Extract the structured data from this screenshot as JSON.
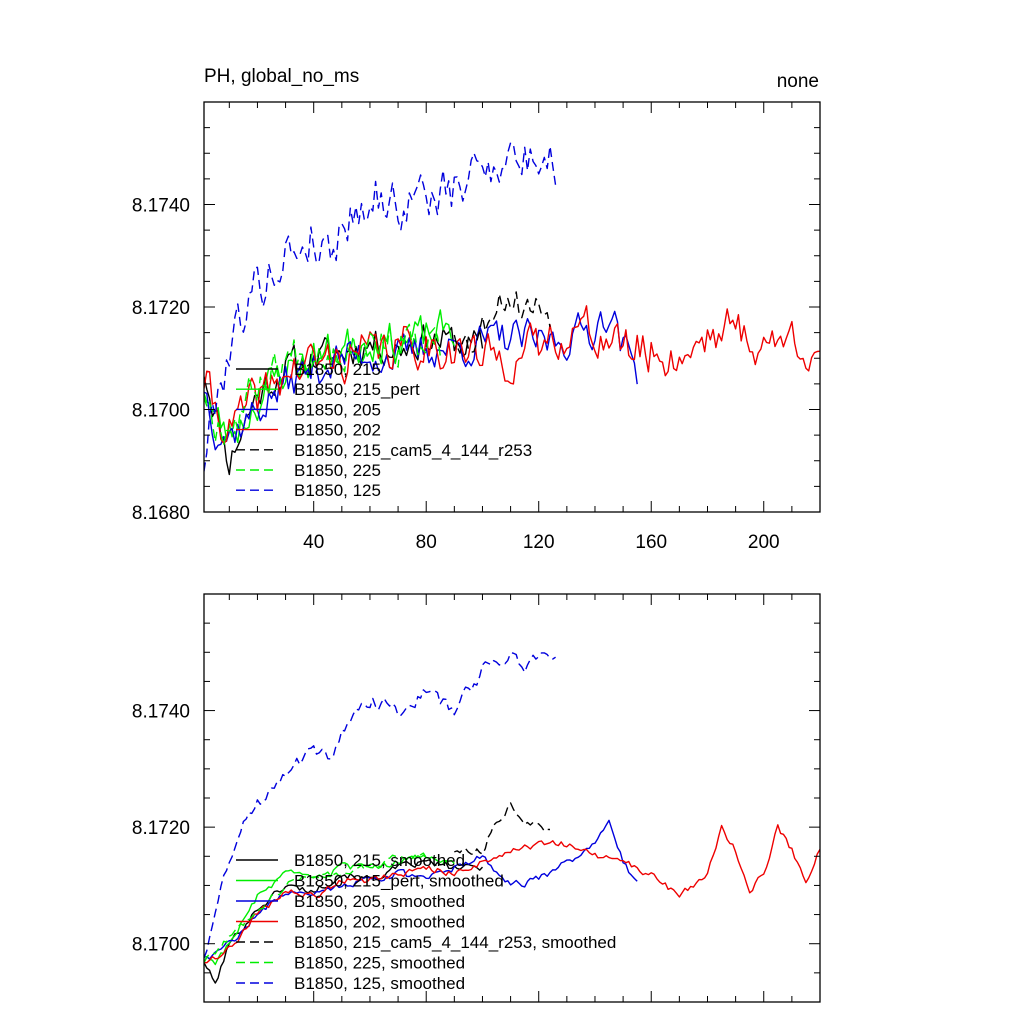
{
  "colors": {
    "black": "#000000",
    "green": "#00ee00",
    "blue": "#0000dd",
    "red": "#ee0000"
  },
  "chart_data": [
    {
      "type": "line",
      "title_left": "PH, global_no_ms",
      "title_right": "none",
      "xlim": [
        1,
        220
      ],
      "ylim": [
        8.168,
        8.176
      ],
      "x_ticks": [
        40,
        80,
        120,
        160,
        200
      ],
      "x_tick_labels": [
        "40",
        "80",
        "120",
        "160",
        "200"
      ],
      "y_ticks": [
        8.168,
        8.17,
        8.172,
        8.174
      ],
      "y_tick_labels": [
        "8.1680",
        "8.1700",
        "8.1720",
        "8.1740"
      ],
      "series": [
        {
          "name": "B1850, 215",
          "color": "black",
          "dash": "solid",
          "noise": 0.00055,
          "seed": 11,
          "anchors": [
            [
              1,
              8.1708
            ],
            [
              5,
              8.17
            ],
            [
              10,
              8.169
            ],
            [
              15,
              8.1697
            ],
            [
              20,
              8.1703
            ],
            [
              30,
              8.1708
            ],
            [
              40,
              8.171
            ],
            [
              50,
              8.1711
            ],
            [
              60,
              8.1713
            ],
            [
              70,
              8.1712
            ],
            [
              80,
              8.1714
            ],
            [
              90,
              8.1713
            ],
            [
              100,
              8.1712
            ]
          ]
        },
        {
          "name": "B1850, 215_pert",
          "color": "green",
          "dash": "solid",
          "noise": 0.00065,
          "seed": 23,
          "anchors": [
            [
              1,
              8.1705
            ],
            [
              5,
              8.1698
            ],
            [
              10,
              8.1695
            ],
            [
              15,
              8.1698
            ],
            [
              20,
              8.1702
            ],
            [
              30,
              8.1708
            ],
            [
              40,
              8.171
            ],
            [
              50,
              8.1712
            ],
            [
              60,
              8.1714
            ],
            [
              70,
              8.1713
            ],
            [
              80,
              8.1714
            ],
            [
              90,
              8.1716
            ]
          ]
        },
        {
          "name": "B1850, 205",
          "color": "blue",
          "dash": "solid",
          "noise": 0.0006,
          "seed": 37,
          "anchors": [
            [
              1,
              8.1705
            ],
            [
              5,
              8.1697
            ],
            [
              10,
              8.1695
            ],
            [
              20,
              8.17
            ],
            [
              30,
              8.1705
            ],
            [
              40,
              8.1708
            ],
            [
              50,
              8.171
            ],
            [
              60,
              8.1711
            ],
            [
              70,
              8.171
            ],
            [
              80,
              8.1712
            ],
            [
              90,
              8.1712
            ],
            [
              100,
              8.1713
            ],
            [
              110,
              8.1714
            ],
            [
              120,
              8.1713
            ],
            [
              130,
              8.1714
            ],
            [
              140,
              8.1716
            ],
            [
              145,
              8.172
            ],
            [
              150,
              8.1712
            ],
            [
              155,
              8.1708
            ]
          ]
        },
        {
          "name": "B1850, 202",
          "color": "red",
          "dash": "solid",
          "noise": 0.0007,
          "seed": 41,
          "anchors": [
            [
              1,
              8.1706
            ],
            [
              5,
              8.17
            ],
            [
              10,
              8.1696
            ],
            [
              20,
              8.1702
            ],
            [
              30,
              8.1707
            ],
            [
              40,
              8.1709
            ],
            [
              50,
              8.171
            ],
            [
              60,
              8.1711
            ],
            [
              70,
              8.1712
            ],
            [
              80,
              8.1713
            ],
            [
              90,
              8.1712
            ],
            [
              100,
              8.171
            ],
            [
              110,
              8.171
            ],
            [
              120,
              8.1712
            ],
            [
              130,
              8.1716
            ],
            [
              140,
              8.1715
            ],
            [
              150,
              8.1712
            ],
            [
              160,
              8.1711
            ],
            [
              170,
              8.171
            ],
            [
              180,
              8.1715
            ],
            [
              190,
              8.1716
            ],
            [
              200,
              8.1712
            ],
            [
              210,
              8.1714
            ],
            [
              220,
              8.1712
            ]
          ]
        },
        {
          "name": "B1850, 215_cam5_4_144_r253",
          "color": "black",
          "dash": "longdash",
          "noise": 0.00055,
          "seed": 53,
          "anchors": [
            [
              90,
              8.1716
            ],
            [
              95,
              8.1713
            ],
            [
              100,
              8.1716
            ],
            [
              105,
              8.1722
            ],
            [
              110,
              8.1722
            ],
            [
              115,
              8.172
            ],
            [
              120,
              8.172
            ],
            [
              124,
              8.1719
            ]
          ]
        },
        {
          "name": "B1850, 225",
          "color": "green",
          "dash": "longdash",
          "noise": 0.00065,
          "seed": 67,
          "anchors": [
            [
              1,
              8.1704
            ],
            [
              5,
              8.1698
            ],
            [
              10,
              8.1697
            ],
            [
              20,
              8.1705
            ],
            [
              30,
              8.171
            ],
            [
              40,
              8.1712
            ],
            [
              50,
              8.1712
            ],
            [
              60,
              8.1714
            ],
            [
              70,
              8.1713
            ],
            [
              80,
              8.1712
            ],
            [
              85,
              8.1712
            ]
          ]
        },
        {
          "name": "B1850, 125",
          "color": "blue",
          "dash": "longdash",
          "noise": 0.0008,
          "seed": 79,
          "anchors": [
            [
              1,
              8.169
            ],
            [
              5,
              8.1702
            ],
            [
              10,
              8.1712
            ],
            [
              15,
              8.172
            ],
            [
              20,
              8.1724
            ],
            [
              30,
              8.173
            ],
            [
              40,
              8.1734
            ],
            [
              45,
              8.173
            ],
            [
              50,
              8.1736
            ],
            [
              60,
              8.1742
            ],
            [
              70,
              8.174
            ],
            [
              80,
              8.1742
            ],
            [
              90,
              8.1742
            ],
            [
              100,
              8.1748
            ],
            [
              110,
              8.175
            ],
            [
              115,
              8.1748
            ],
            [
              120,
              8.175
            ],
            [
              126,
              8.1748
            ]
          ]
        }
      ]
    },
    {
      "type": "line",
      "xlim": [
        1,
        220
      ],
      "ylim": [
        8.169,
        8.176
      ],
      "x_ticks": [
        40,
        80,
        120,
        160,
        200
      ],
      "x_tick_labels": [],
      "y_ticks": [
        8.17,
        8.172,
        8.174
      ],
      "y_tick_labels": [
        "8.1700",
        "8.1720",
        "8.1740"
      ],
      "series": [
        {
          "name": "B1850, 215, smoothed",
          "color": "black",
          "dash": "solid",
          "noise": 0.0001,
          "seed": 101,
          "anchors": [
            [
              1,
              8.1697
            ],
            [
              5,
              8.1693
            ],
            [
              10,
              8.17
            ],
            [
              20,
              8.1706
            ],
            [
              30,
              8.171
            ],
            [
              40,
              8.1709
            ],
            [
              50,
              8.1712
            ],
            [
              60,
              8.1711
            ],
            [
              70,
              8.1713
            ],
            [
              80,
              8.1714
            ],
            [
              90,
              8.1713
            ],
            [
              100,
              8.1713
            ]
          ]
        },
        {
          "name": "B1850, 215_pert, smoothed",
          "color": "green",
          "dash": "solid",
          "noise": 0.0001,
          "seed": 103,
          "anchors": [
            [
              1,
              8.1698
            ],
            [
              5,
              8.1697
            ],
            [
              10,
              8.17
            ],
            [
              20,
              8.1708
            ],
            [
              30,
              8.1712
            ],
            [
              40,
              8.1711
            ],
            [
              50,
              8.1713
            ],
            [
              60,
              8.1713
            ],
            [
              70,
              8.1714
            ],
            [
              80,
              8.1715
            ],
            [
              90,
              8.1714
            ]
          ]
        },
        {
          "name": "B1850, 205, smoothed",
          "color": "blue",
          "dash": "solid",
          "noise": 0.0001,
          "seed": 107,
          "anchors": [
            [
              1,
              8.1697
            ],
            [
              10,
              8.17
            ],
            [
              20,
              8.1705
            ],
            [
              30,
              8.1709
            ],
            [
              40,
              8.1709
            ],
            [
              50,
              8.171
            ],
            [
              60,
              8.1711
            ],
            [
              70,
              8.1712
            ],
            [
              80,
              8.1711
            ],
            [
              90,
              8.1713
            ],
            [
              100,
              8.1715
            ],
            [
              110,
              8.171
            ],
            [
              120,
              8.1711
            ],
            [
              130,
              8.1714
            ],
            [
              140,
              8.1717
            ],
            [
              145,
              8.1722
            ],
            [
              150,
              8.1714
            ],
            [
              155,
              8.171
            ]
          ]
        },
        {
          "name": "B1850, 202, smoothed",
          "color": "red",
          "dash": "solid",
          "noise": 0.0001,
          "seed": 109,
          "anchors": [
            [
              1,
              8.1697
            ],
            [
              10,
              8.1699
            ],
            [
              20,
              8.1705
            ],
            [
              30,
              8.1709
            ],
            [
              40,
              8.1708
            ],
            [
              50,
              8.1711
            ],
            [
              60,
              8.1711
            ],
            [
              70,
              8.1712
            ],
            [
              80,
              8.1713
            ],
            [
              90,
              8.1712
            ],
            [
              100,
              8.1714
            ],
            [
              110,
              8.1716
            ],
            [
              120,
              8.1717
            ],
            [
              130,
              8.1717
            ],
            [
              140,
              8.1715
            ],
            [
              150,
              8.1714
            ],
            [
              160,
              8.1712
            ],
            [
              170,
              8.1708
            ],
            [
              180,
              8.1712
            ],
            [
              185,
              8.172
            ],
            [
              190,
              8.1716
            ],
            [
              195,
              8.1709
            ],
            [
              200,
              8.1712
            ],
            [
              205,
              8.172
            ],
            [
              210,
              8.1716
            ],
            [
              215,
              8.1711
            ],
            [
              220,
              8.1716
            ]
          ]
        },
        {
          "name": "B1850, 215_cam5_4_144_r253, smoothed",
          "color": "black",
          "dash": "longdash",
          "noise": 0.0001,
          "seed": 113,
          "anchors": [
            [
              90,
              8.1716
            ],
            [
              100,
              8.1716
            ],
            [
              105,
              8.1721
            ],
            [
              110,
              8.1724
            ],
            [
              115,
              8.1721
            ],
            [
              120,
              8.172
            ],
            [
              124,
              8.1719
            ]
          ]
        },
        {
          "name": "B1850, 225, smoothed",
          "color": "green",
          "dash": "longdash",
          "noise": 0.0001,
          "seed": 127,
          "anchors": [
            [
              1,
              8.1697
            ],
            [
              10,
              8.1701
            ],
            [
              20,
              8.1706
            ],
            [
              30,
              8.171
            ],
            [
              40,
              8.1712
            ],
            [
              50,
              8.1712
            ],
            [
              60,
              8.1713
            ],
            [
              70,
              8.1715
            ],
            [
              80,
              8.1715
            ],
            [
              88,
              8.1714
            ]
          ]
        },
        {
          "name": "B1850, 125, smoothed",
          "color": "blue",
          "dash": "longdash",
          "noise": 0.0002,
          "seed": 131,
          "anchors": [
            [
              1,
              8.1698
            ],
            [
              5,
              8.1705
            ],
            [
              10,
              8.1715
            ],
            [
              15,
              8.172
            ],
            [
              20,
              8.1724
            ],
            [
              30,
              8.173
            ],
            [
              40,
              8.1733
            ],
            [
              45,
              8.1732
            ],
            [
              50,
              8.1736
            ],
            [
              60,
              8.1742
            ],
            [
              70,
              8.174
            ],
            [
              80,
              8.1743
            ],
            [
              90,
              8.174
            ],
            [
              100,
              8.1747
            ],
            [
              110,
              8.175
            ],
            [
              115,
              8.1747
            ],
            [
              120,
              8.175
            ],
            [
              126,
              8.1749
            ]
          ]
        }
      ]
    }
  ]
}
